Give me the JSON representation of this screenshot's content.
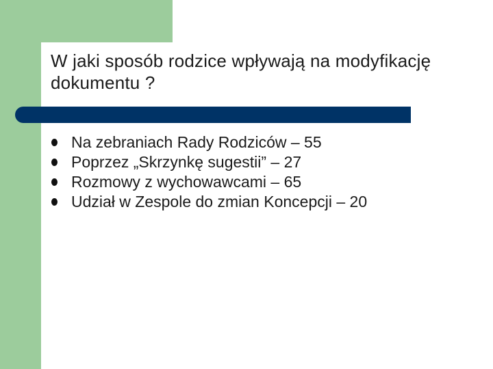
{
  "slide": {
    "title": "W jaki sposób rodzice wpływają na modyfikację dokumentu ?",
    "bullets": [
      "Na zebraniach Rady Rodziców – 55",
      "Poprzez „Skrzynkę sugestii” – 27",
      "Rozmowy z wychowawcami – 65",
      "Udział w Zespole do zmian Koncepcji – 20"
    ]
  },
  "colors": {
    "background_green": "#9ccc9c",
    "rule_navy": "#003366",
    "text": "#1a1a1a"
  },
  "icons": [
    "bullet-dot-icon"
  ]
}
